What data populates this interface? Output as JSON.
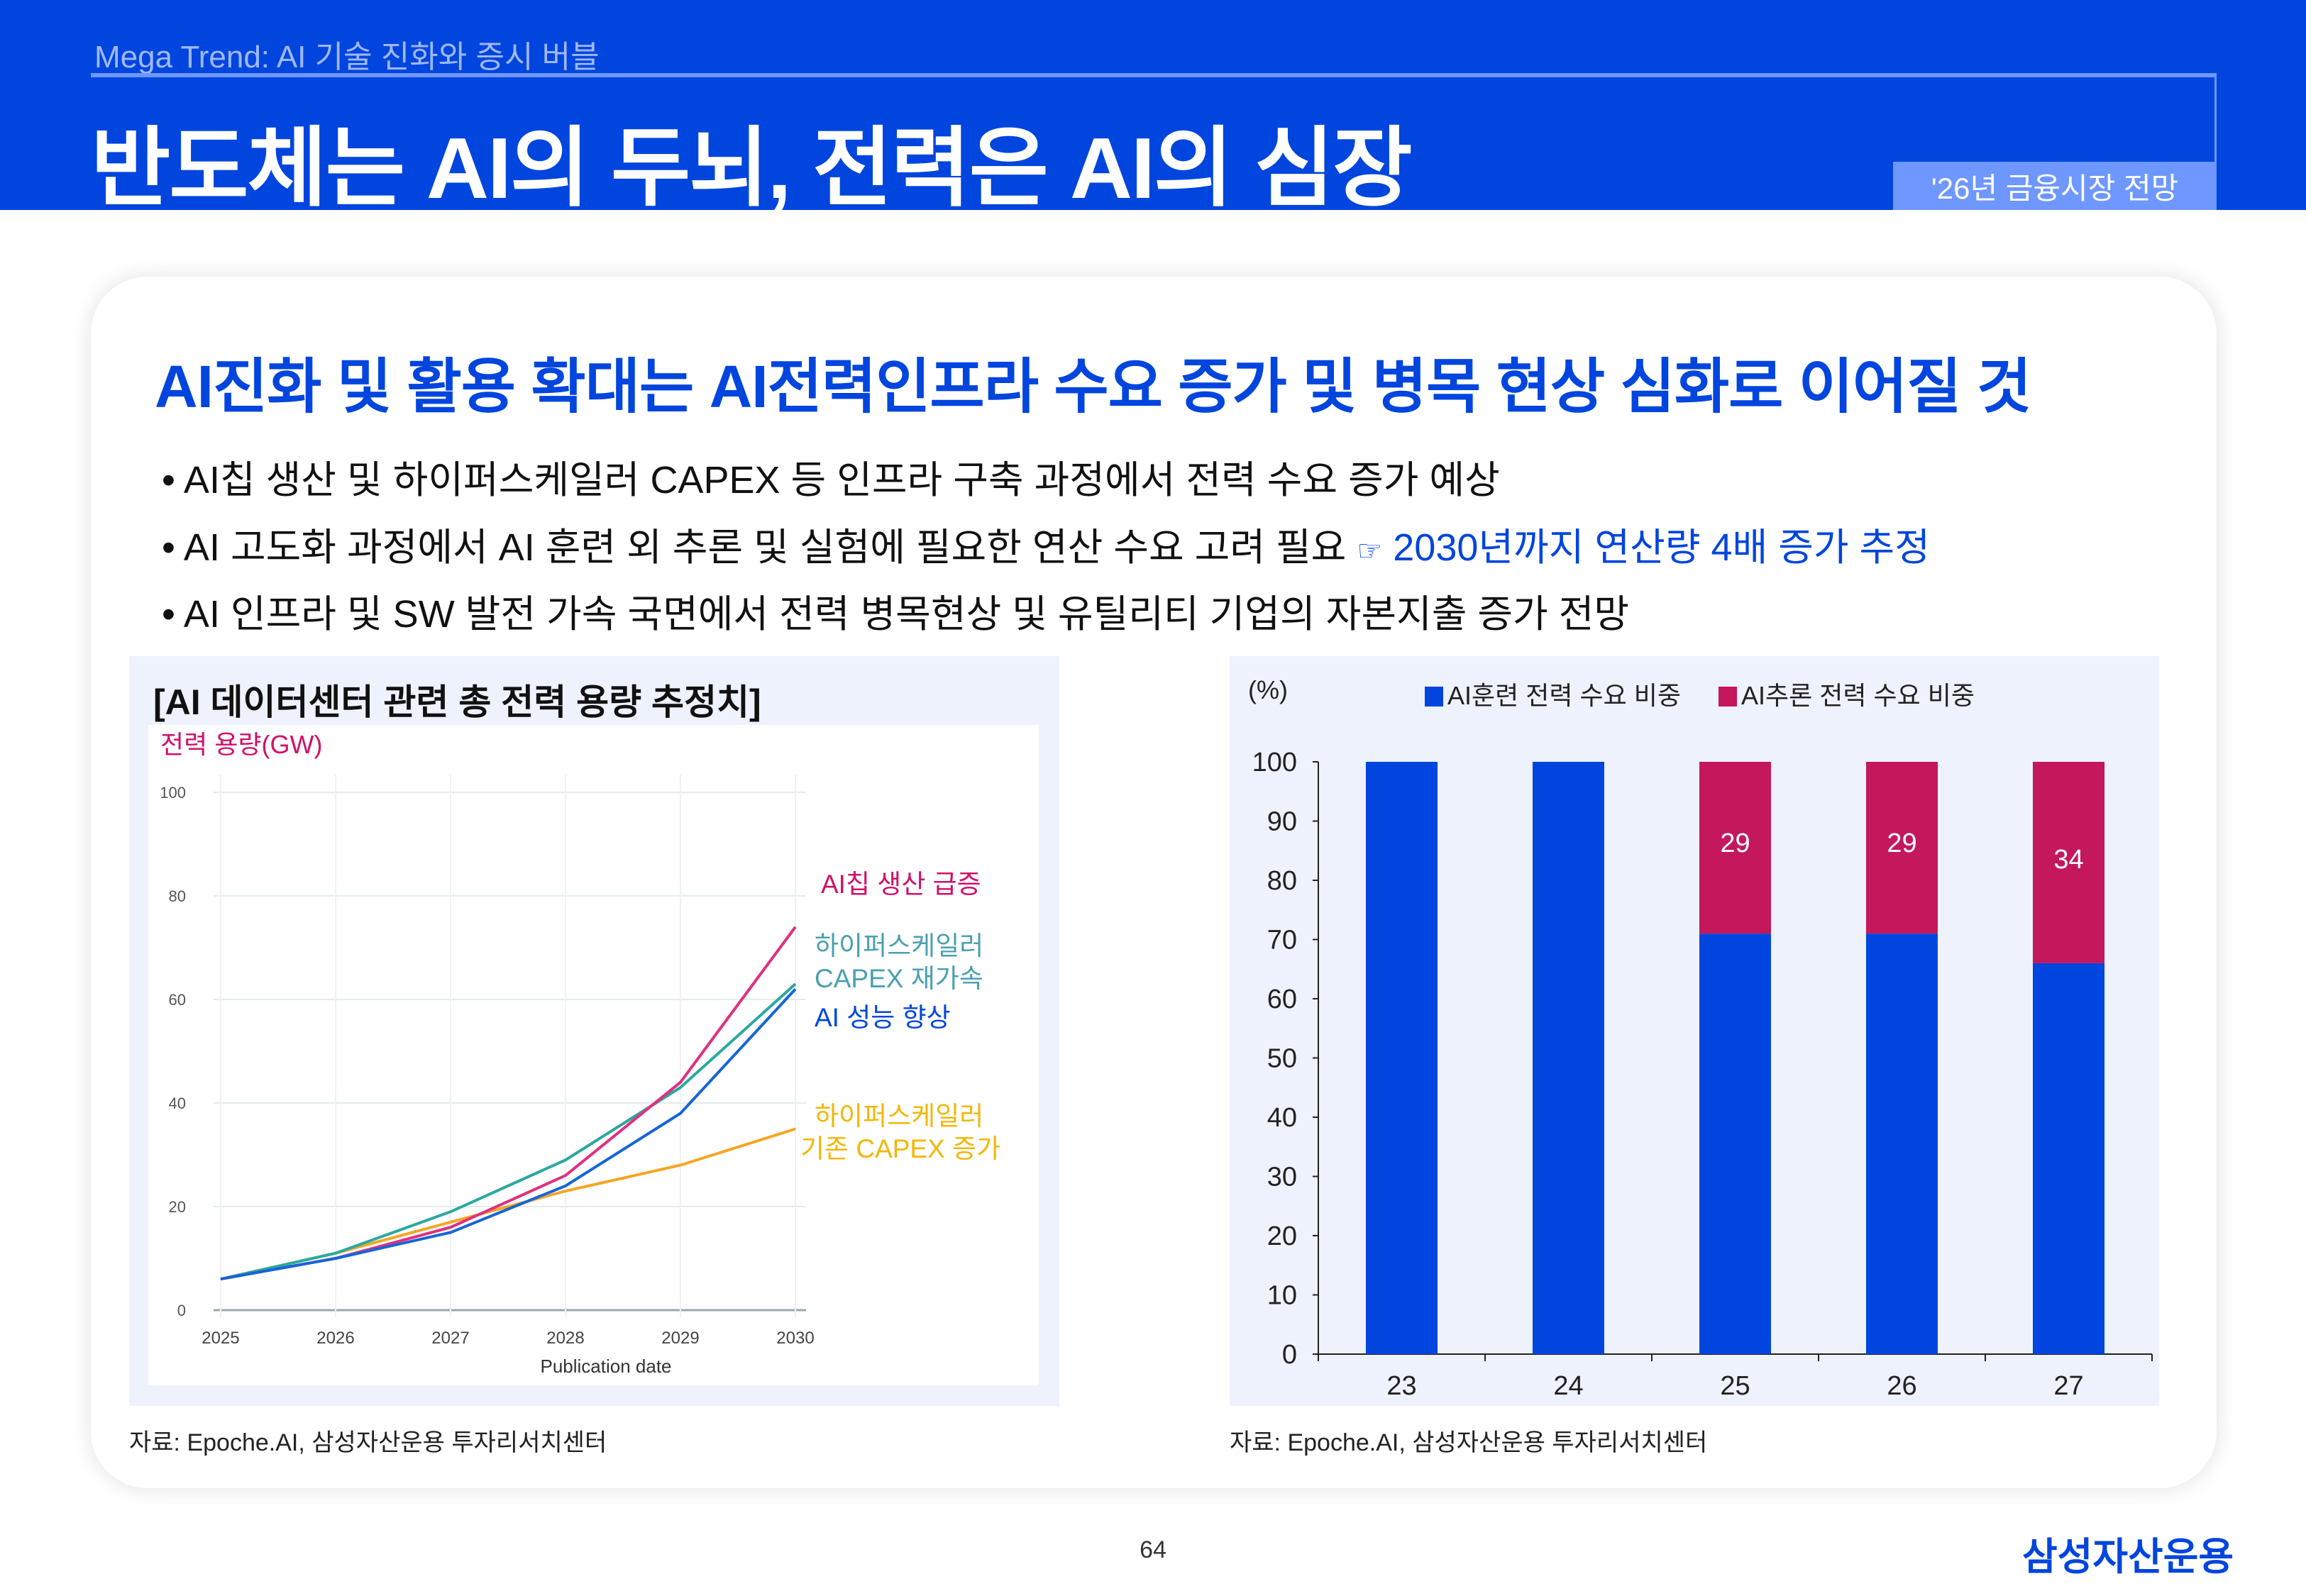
{
  "header": {
    "subtitle": "Mega Trend: AI 기술 진화와 증시 버블",
    "title": "반도체는 AI의 두뇌, 전력은 AI의 심장",
    "badge": "'26년 금융시장 전망"
  },
  "card": {
    "heading": "AI진화 및 활용 확대는 AI전력인프라 수요 증가 및 병목 현상 심화로 이어질 것",
    "bullets": [
      {
        "text": "• AI칩 생산 및 하이퍼스케일러 CAPEX 등 인프라 구축 과정에서 전력 수요 증가 예상",
        "highlight": ""
      },
      {
        "text": "• AI 고도화 과정에서 AI 훈련 외 추론 및 실험에 필요한 연산 수요 고려 필요 ",
        "icon": "pointing-hand-icon",
        "icon_glyph": "☞",
        "highlight": "2030년까지 연산량 4배 증가 추정"
      },
      {
        "text": "• AI 인프라 및 SW 발전 가속 국면에서 전력 병목현상 및 유틸리티 기업의 자본지출 증가 전망",
        "highlight": ""
      }
    ],
    "left_source": "자료: Epoche.AI, 삼성자산운용 투자리서치센터",
    "right_source": "자료: Epoche.AI, 삼성자산운용 투자리서치센터"
  },
  "footer": {
    "page": "64",
    "logo": "삼성자산운용"
  },
  "colors": {
    "brand": "#0045de",
    "badge": "#6e97ff",
    "panel": "#eef2fd",
    "inference": "#c4175c"
  },
  "chart_data": [
    {
      "type": "line",
      "title": "[AI 데이터센터 관련 총 전력 용량 추정치]",
      "ylabel": "전력 용량(GW)",
      "xlabel": "Publication date",
      "x": [
        2025,
        2026,
        2027,
        2028,
        2029,
        2030
      ],
      "xticks": [
        "2025",
        "2026",
        "2027",
        "2028",
        "2029",
        "2030"
      ],
      "yticks": [
        0,
        20,
        40,
        60,
        80,
        100
      ],
      "ylim": [
        0,
        100
      ],
      "grid": true,
      "series": [
        {
          "name": "AI칩 생산 급증",
          "color": "#e0307f",
          "label_color": "#d0106a",
          "values": [
            6,
            10,
            16,
            26,
            44,
            74
          ]
        },
        {
          "name": "하이퍼스케일러 CAPEX 재가속",
          "name_lines": [
            "하이퍼스케일러",
            "CAPEX 재가속"
          ],
          "color": "#2ba8a0",
          "label_color": "#4aa0b0",
          "values": [
            6,
            11,
            19,
            29,
            43,
            63
          ]
        },
        {
          "name": "AI 성능 향상",
          "color": "#1565d8",
          "label_color": "#0045de",
          "values": [
            6,
            10,
            15,
            24,
            38,
            62
          ]
        },
        {
          "name": "하이퍼스케일러 기존 CAPEX 증가",
          "name_lines": [
            "하이퍼스케일러",
            "기존 CAPEX 증가"
          ],
          "color": "#f5a623",
          "label_color": "#f2b705",
          "values": [
            6,
            11,
            17,
            23,
            28,
            35
          ]
        }
      ]
    },
    {
      "type": "bar",
      "stacked": true,
      "unit_label": "(%)",
      "categories": [
        "23",
        "24",
        "25",
        "26",
        "27"
      ],
      "ylim": [
        0,
        100
      ],
      "yticks": [
        0,
        10,
        20,
        30,
        40,
        50,
        60,
        70,
        80,
        90,
        100
      ],
      "legend": "top",
      "series": [
        {
          "name": "AI훈련 전력 수요 비중",
          "color": "#0045de",
          "values": [
            100,
            100,
            71,
            71,
            66
          ]
        },
        {
          "name": "AI추론 전력 수요 비중",
          "color": "#c4175c",
          "values": [
            0,
            0,
            29,
            29,
            34
          ],
          "data_labels": [
            "",
            "",
            "29",
            "29",
            "34"
          ]
        }
      ]
    }
  ]
}
